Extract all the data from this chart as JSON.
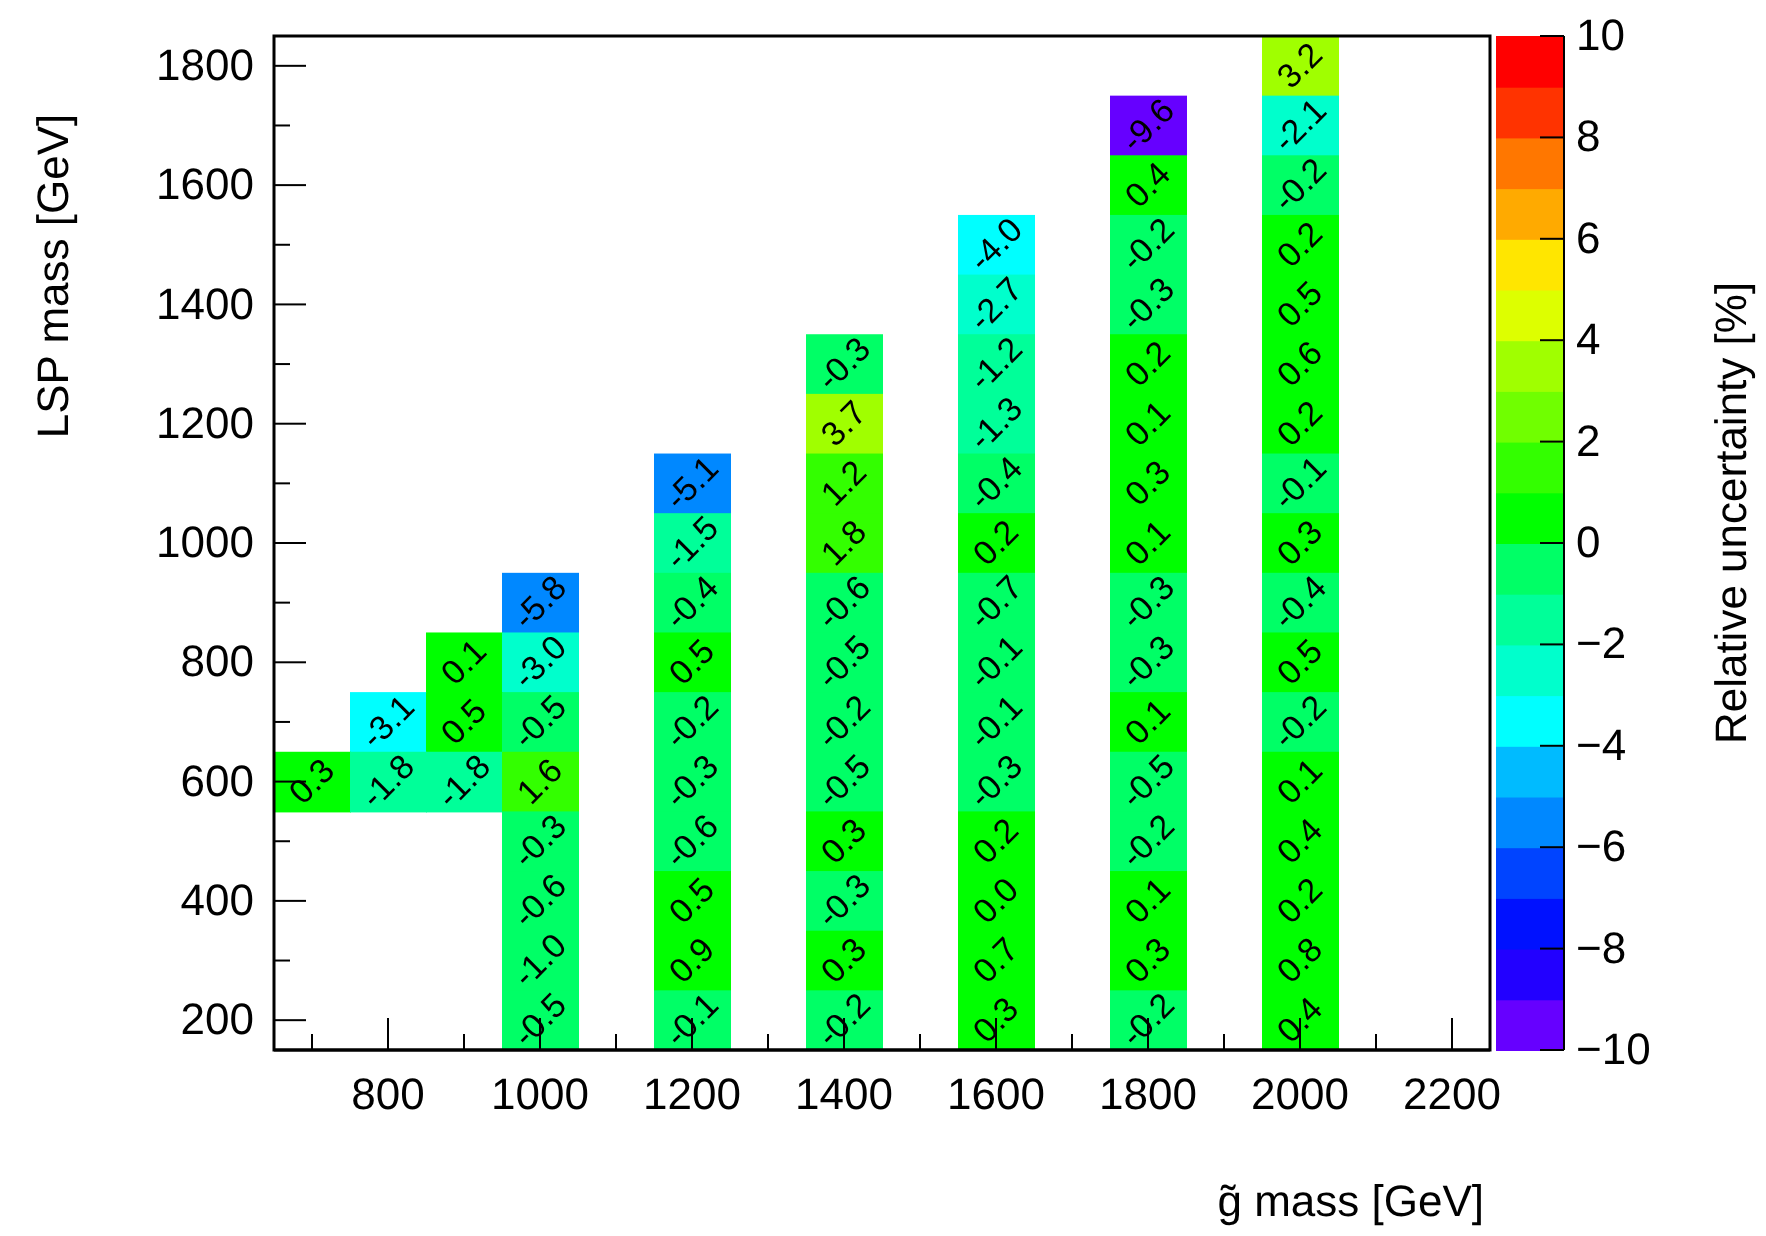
{
  "chart_data": {
    "type": "heatmap",
    "xlabel": "g̃ mass [GeV]",
    "ylabel": "LSP mass [GeV]",
    "clabel": "Relative uncertainty [%]",
    "categories": [
      null,
      "800",
      null,
      "1000",
      null,
      "1200",
      null,
      "1400",
      null,
      "1600",
      null,
      "1800",
      null,
      "2000",
      null,
      "2200"
    ],
    "y_categories": [
      "1800",
      null,
      "1600",
      null,
      "1400",
      null,
      "1200",
      null,
      "1000",
      null,
      "800",
      null,
      "600",
      null,
      "400",
      null,
      "200"
    ],
    "cells": [
      [
        null,
        null,
        null,
        null,
        null,
        null,
        null,
        null,
        null,
        null,
        null,
        null,
        null,
        3.2,
        null,
        null
      ],
      [
        null,
        null,
        null,
        null,
        null,
        null,
        null,
        null,
        null,
        null,
        null,
        -9.6,
        null,
        -2.1,
        null,
        null
      ],
      [
        null,
        null,
        null,
        null,
        null,
        null,
        null,
        null,
        null,
        null,
        null,
        0.4,
        null,
        -0.2,
        null,
        null
      ],
      [
        null,
        null,
        null,
        null,
        null,
        null,
        null,
        null,
        null,
        -4.0,
        null,
        -0.2,
        null,
        0.2,
        null,
        null
      ],
      [
        null,
        null,
        null,
        null,
        null,
        null,
        null,
        null,
        null,
        -2.7,
        null,
        -0.3,
        null,
        0.5,
        null,
        null
      ],
      [
        null,
        null,
        null,
        null,
        null,
        null,
        null,
        -0.3,
        null,
        -1.2,
        null,
        0.2,
        null,
        0.6,
        null,
        null
      ],
      [
        null,
        null,
        null,
        null,
        null,
        null,
        null,
        3.7,
        null,
        -1.3,
        null,
        0.1,
        null,
        0.2,
        null,
        null
      ],
      [
        null,
        null,
        null,
        null,
        null,
        -5.1,
        null,
        1.2,
        null,
        -0.4,
        null,
        0.3,
        null,
        -0.1,
        null,
        null
      ],
      [
        null,
        null,
        null,
        null,
        null,
        -1.5,
        null,
        1.8,
        null,
        0.2,
        null,
        0.1,
        null,
        0.3,
        null,
        null
      ],
      [
        null,
        null,
        null,
        -5.8,
        null,
        -0.4,
        null,
        -0.6,
        null,
        -0.7,
        null,
        -0.3,
        null,
        -0.4,
        null,
        null
      ],
      [
        null,
        null,
        0.1,
        -3.0,
        null,
        0.5,
        null,
        -0.5,
        null,
        -0.1,
        null,
        -0.3,
        null,
        0.5,
        null,
        null
      ],
      [
        null,
        -3.1,
        0.5,
        -0.5,
        null,
        -0.2,
        null,
        -0.2,
        null,
        -0.1,
        null,
        0.1,
        null,
        -0.2,
        null,
        null
      ],
      [
        0.3,
        -1.8,
        -1.8,
        1.6,
        null,
        -0.3,
        null,
        -0.5,
        null,
        -0.3,
        null,
        -0.5,
        null,
        0.1,
        null,
        null
      ],
      [
        null,
        null,
        null,
        -0.3,
        null,
        -0.6,
        null,
        0.3,
        null,
        0.2,
        null,
        -0.2,
        null,
        0.4,
        null,
        null
      ],
      [
        null,
        null,
        null,
        -0.6,
        null,
        0.5,
        null,
        -0.3,
        null,
        0.0,
        null,
        0.1,
        null,
        0.2,
        null,
        null
      ],
      [
        null,
        null,
        null,
        -1.0,
        null,
        0.9,
        null,
        0.3,
        null,
        0.7,
        null,
        0.3,
        null,
        0.8,
        null,
        null
      ],
      [
        null,
        null,
        null,
        -0.5,
        null,
        -0.1,
        null,
        -0.2,
        null,
        0.3,
        null,
        -0.2,
        null,
        0.4,
        null,
        null
      ]
    ],
    "cell_labels": [
      [
        null,
        null,
        null,
        null,
        null,
        null,
        null,
        null,
        null,
        null,
        null,
        null,
        null,
        "3.2",
        null,
        null
      ],
      [
        null,
        null,
        null,
        null,
        null,
        null,
        null,
        null,
        null,
        null,
        null,
        "-9.6",
        null,
        "-2.1",
        null,
        null
      ],
      [
        null,
        null,
        null,
        null,
        null,
        null,
        null,
        null,
        null,
        null,
        null,
        "0.4",
        null,
        "-0.2",
        null,
        null
      ],
      [
        null,
        null,
        null,
        null,
        null,
        null,
        null,
        null,
        null,
        "-4.0",
        null,
        "-0.2",
        null,
        "0.2",
        null,
        null
      ],
      [
        null,
        null,
        null,
        null,
        null,
        null,
        null,
        null,
        null,
        "-2.7",
        null,
        "-0.3",
        null,
        "0.5",
        null,
        null
      ],
      [
        null,
        null,
        null,
        null,
        null,
        null,
        null,
        "-0.3",
        null,
        "-1.2",
        null,
        "0.2",
        null,
        "0.6",
        null,
        null
      ],
      [
        null,
        null,
        null,
        null,
        null,
        null,
        null,
        "3.7",
        null,
        "-1.3",
        null,
        "0.1",
        null,
        "0.2",
        null,
        null
      ],
      [
        null,
        null,
        null,
        null,
        null,
        "-5.1",
        null,
        "1.2",
        null,
        "-0.4",
        null,
        "0.3",
        null,
        "-0.1",
        null,
        null
      ],
      [
        null,
        null,
        null,
        null,
        null,
        "-1.5",
        null,
        "1.8",
        null,
        "0.2",
        null,
        "0.1",
        null,
        "0.3",
        null,
        null
      ],
      [
        null,
        null,
        null,
        "-5.8",
        null,
        "-0.4",
        null,
        "-0.6",
        null,
        "-0.7",
        null,
        "-0.3",
        null,
        "-0.4",
        null,
        null
      ],
      [
        null,
        null,
        "0.1",
        "-3.0",
        null,
        "0.5",
        null,
        "-0.5",
        null,
        "-0.1",
        null,
        "-0.3",
        null,
        "0.5",
        null,
        null
      ],
      [
        null,
        "-3.1",
        "0.5",
        "-0.5",
        null,
        "-0.2",
        null,
        "-0.2",
        null,
        "-0.1",
        null,
        "0.1",
        null,
        "-0.2",
        null,
        null
      ],
      [
        "0.3",
        "-1.8",
        "-1.8",
        "1.6",
        null,
        "-0.3",
        null,
        "-0.5",
        null,
        "-0.3",
        null,
        "-0.5",
        null,
        "0.1",
        null,
        null
      ],
      [
        null,
        null,
        null,
        "-0.3",
        null,
        "-0.6",
        null,
        "0.3",
        null,
        "0.2",
        null,
        "-0.2",
        null,
        "0.4",
        null,
        null
      ],
      [
        null,
        null,
        null,
        "-0.6",
        null,
        "0.5",
        null,
        "-0.3",
        null,
        "0.0",
        null,
        "0.1",
        null,
        "0.2",
        null,
        null
      ],
      [
        null,
        null,
        null,
        "-1.0",
        null,
        "0.9",
        null,
        "0.3",
        null,
        "0.7",
        null,
        "0.3",
        null,
        "0.8",
        null,
        null
      ],
      [
        null,
        null,
        null,
        "-0.5",
        null,
        "-0.1",
        null,
        "-0.2",
        null,
        "0.3",
        null,
        "-0.2",
        null,
        "0.4",
        null,
        null
      ]
    ],
    "clim": [
      -10,
      10
    ],
    "cticks": [
      -10,
      -8,
      -6,
      -4,
      -2,
      0,
      2,
      4,
      6,
      8,
      10
    ]
  }
}
